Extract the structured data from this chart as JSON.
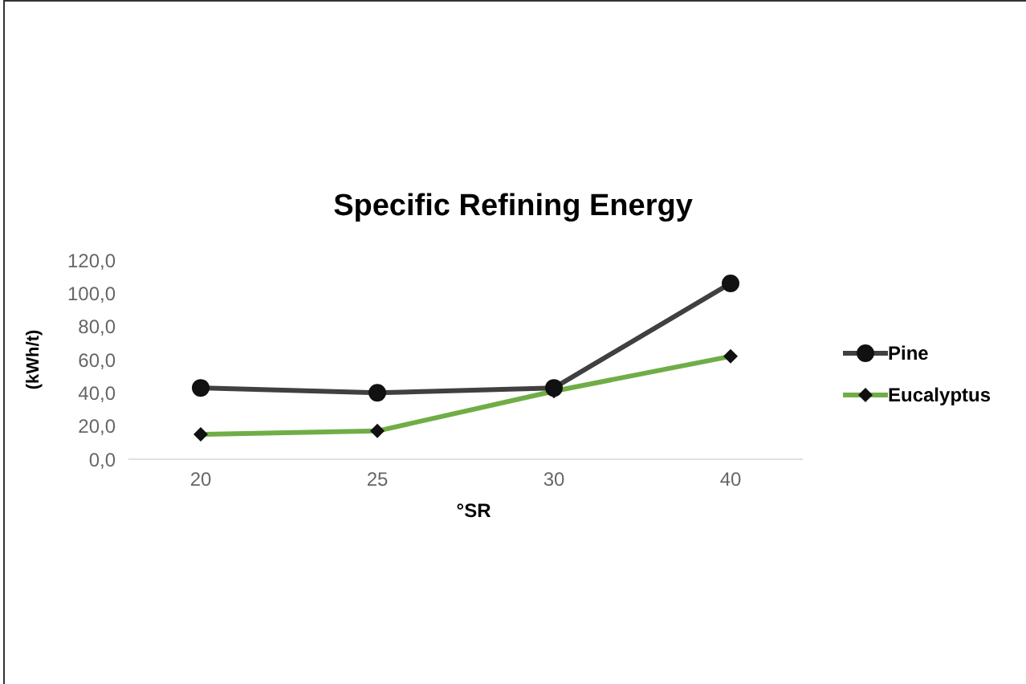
{
  "chart_data": {
    "type": "line",
    "title": "Specific Refining Energy",
    "xlabel": "°SR",
    "ylabel": "(kWh/t)",
    "categories": [
      "20",
      "25",
      "30",
      "40"
    ],
    "series": [
      {
        "name": "Pine",
        "color": "#404040",
        "marker": "circle",
        "values": [
          43,
          40,
          43,
          106
        ]
      },
      {
        "name": "Eucalyptus",
        "color": "#70ad47",
        "marker": "diamond",
        "values": [
          15,
          17,
          41,
          62
        ]
      }
    ],
    "ylim": [
      0,
      120
    ],
    "yticks": [
      {
        "value": 0,
        "label": "0,0"
      },
      {
        "value": 20,
        "label": "20,0"
      },
      {
        "value": 40,
        "label": "40,0"
      },
      {
        "value": 60,
        "label": "60,0"
      },
      {
        "value": 80,
        "label": "80,0"
      },
      {
        "value": 100,
        "label": "100,0"
      },
      {
        "value": 120,
        "label": "120,0"
      }
    ],
    "grid": false,
    "legend": "right"
  }
}
